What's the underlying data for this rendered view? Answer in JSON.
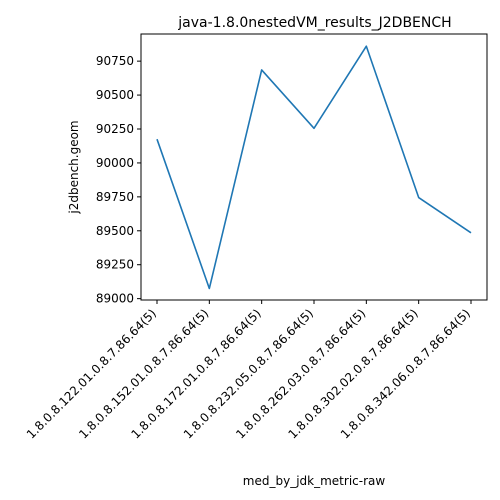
{
  "chart_data": {
    "type": "line",
    "title": "java-1.8.0nestedVM_results_J2DBENCH",
    "xlabel": "med_by_jdk_metric-raw",
    "ylabel": "j2dbench.geom",
    "categories": [
      "1.8.0.8.122.01.0.8.7.86.64(5)",
      "1.8.0.8.152.01.0.8.7.86.64(5)",
      "1.8.0.8.172.01.0.8.7.86.64(5)",
      "1.8.0.8.232.05.0.8.7.86.64(5)",
      "1.8.0.8.262.03.0.8.7.86.64(5)",
      "1.8.0.8.302.02.0.8.7.86.64(5)",
      "1.8.0.8.342.06.0.8.7.86.64(5)"
    ],
    "series": [
      {
        "values": [
          90175,
          89075,
          90685,
          90255,
          90860,
          89745,
          89485
        ],
        "color": "#1f77b4"
      }
    ],
    "yticks": [
      89000,
      89250,
      89500,
      89750,
      90000,
      90250,
      90500,
      90750
    ],
    "ytick_labels": [
      "89000",
      "89250",
      "89500",
      "89750",
      "90000",
      "90250",
      "90500",
      "90750"
    ],
    "ylim": [
      88990,
      90950
    ],
    "grid": false,
    "legend": "none"
  }
}
